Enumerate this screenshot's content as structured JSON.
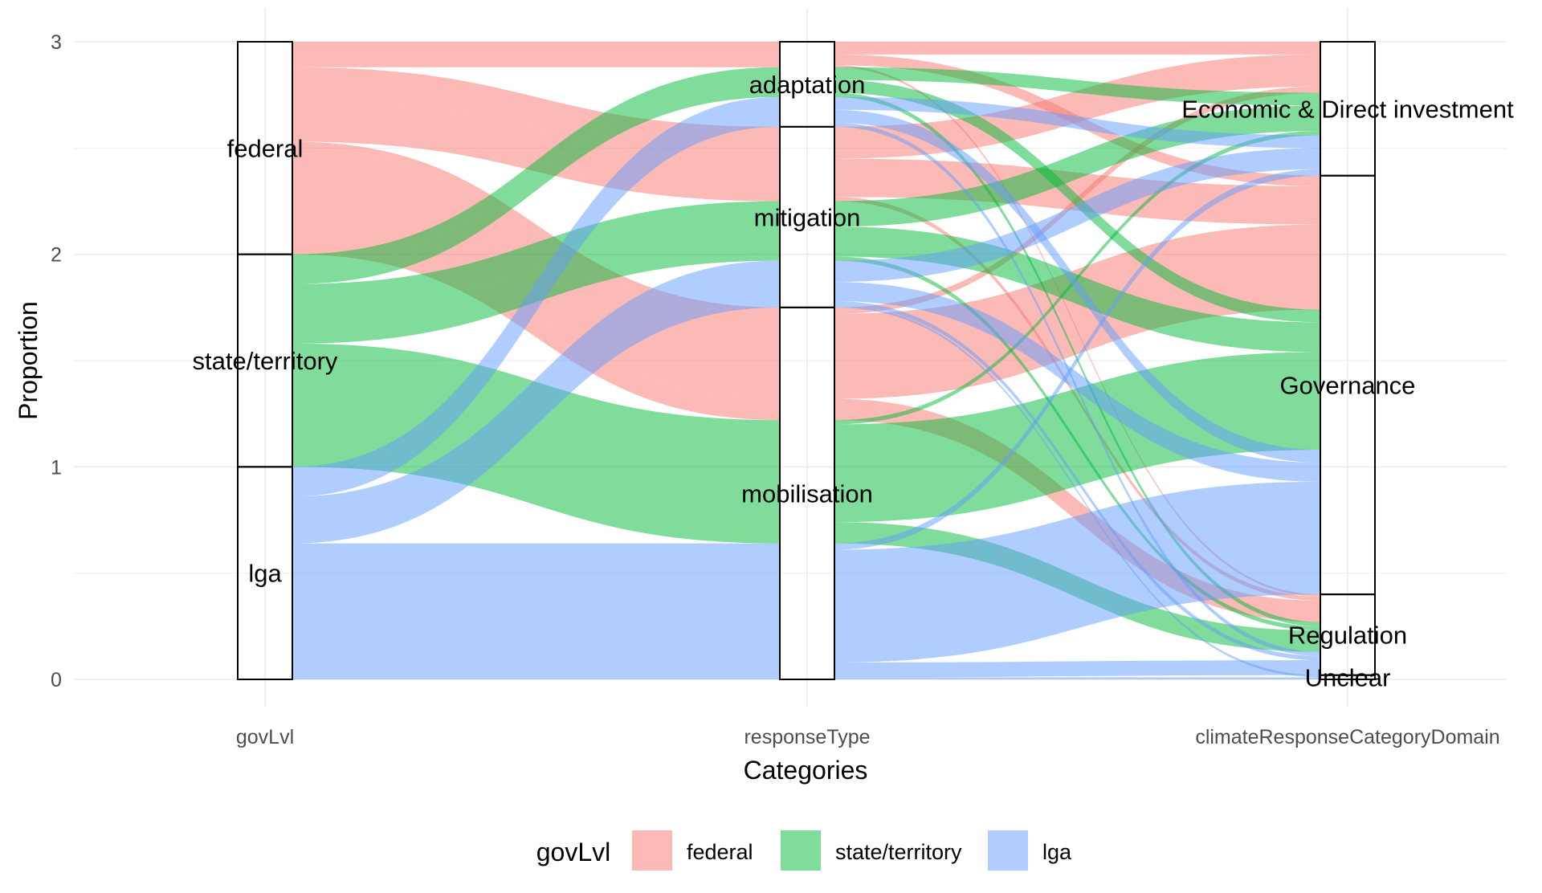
{
  "chart_data": {
    "type": "alluvial",
    "xlabel": "Categories",
    "ylabel": "Proportion",
    "ylim": [
      0,
      3
    ],
    "yticks": [
      "0",
      "1",
      "2",
      "3"
    ],
    "grid": true,
    "legend_position": "bottom",
    "legend_title": "govLvl",
    "axes": [
      {
        "name": "govLvl",
        "strata": [
          "federal",
          "state/territory",
          "lga"
        ]
      },
      {
        "name": "responseType",
        "strata": [
          "adaptation",
          "mitigation",
          "mobilisation"
        ]
      },
      {
        "name": "climateResponseCategoryDomain",
        "strata": [
          "Economic & Direct investment",
          "Governance",
          "Regulation",
          "Unclear"
        ]
      }
    ],
    "fill_levels": [
      {
        "name": "federal",
        "color": "#F8766D"
      },
      {
        "name": "state/territory",
        "color": "#00BA38"
      },
      {
        "name": "lga",
        "color": "#619CFF"
      }
    ],
    "flows": [
      {
        "govLvl": "federal",
        "responseType": "adaptation",
        "domain": "Economic & Direct investment",
        "value": 0.06
      },
      {
        "govLvl": "federal",
        "responseType": "adaptation",
        "domain": "Governance",
        "value": 0.05
      },
      {
        "govLvl": "federal",
        "responseType": "adaptation",
        "domain": "Regulation",
        "value": 0.01
      },
      {
        "govLvl": "federal",
        "responseType": "mitigation",
        "domain": "Economic & Direct investment",
        "value": 0.15
      },
      {
        "govLvl": "federal",
        "responseType": "mitigation",
        "domain": "Governance",
        "value": 0.18
      },
      {
        "govLvl": "federal",
        "responseType": "mitigation",
        "domain": "Regulation",
        "value": 0.02
      },
      {
        "govLvl": "federal",
        "responseType": "mobilisation",
        "domain": "Economic & Direct investment",
        "value": 0.03
      },
      {
        "govLvl": "federal",
        "responseType": "mobilisation",
        "domain": "Governance",
        "value": 0.4
      },
      {
        "govLvl": "federal",
        "responseType": "mobilisation",
        "domain": "Regulation",
        "value": 0.1
      },
      {
        "govLvl": "state/territory",
        "responseType": "adaptation",
        "domain": "Economic & Direct investment",
        "value": 0.06
      },
      {
        "govLvl": "state/territory",
        "responseType": "adaptation",
        "domain": "Governance",
        "value": 0.06
      },
      {
        "govLvl": "state/territory",
        "responseType": "adaptation",
        "domain": "Regulation",
        "value": 0.02
      },
      {
        "govLvl": "state/territory",
        "responseType": "mitigation",
        "domain": "Economic & Direct investment",
        "value": 0.12
      },
      {
        "govLvl": "state/territory",
        "responseType": "mitigation",
        "domain": "Governance",
        "value": 0.14
      },
      {
        "govLvl": "state/territory",
        "responseType": "mitigation",
        "domain": "Regulation",
        "value": 0.02
      },
      {
        "govLvl": "state/territory",
        "responseType": "mobilisation",
        "domain": "Economic & Direct investment",
        "value": 0.02
      },
      {
        "govLvl": "state/territory",
        "responseType": "mobilisation",
        "domain": "Governance",
        "value": 0.46
      },
      {
        "govLvl": "state/territory",
        "responseType": "mobilisation",
        "domain": "Regulation",
        "value": 0.1
      },
      {
        "govLvl": "lga",
        "responseType": "adaptation",
        "domain": "Economic & Direct investment",
        "value": 0.06
      },
      {
        "govLvl": "lga",
        "responseType": "adaptation",
        "domain": "Governance",
        "value": 0.06
      },
      {
        "govLvl": "lga",
        "responseType": "adaptation",
        "domain": "Regulation",
        "value": 0.02
      },
      {
        "govLvl": "lga",
        "responseType": "mitigation",
        "domain": "Economic & Direct investment",
        "value": 0.1
      },
      {
        "govLvl": "lga",
        "responseType": "mitigation",
        "domain": "Governance",
        "value": 0.09
      },
      {
        "govLvl": "lga",
        "responseType": "mitigation",
        "domain": "Regulation",
        "value": 0.02
      },
      {
        "govLvl": "lga",
        "responseType": "mitigation",
        "domain": "Unclear",
        "value": 0.01
      },
      {
        "govLvl": "lga",
        "responseType": "mobilisation",
        "domain": "Economic & Direct investment",
        "value": 0.03
      },
      {
        "govLvl": "lga",
        "responseType": "mobilisation",
        "domain": "Governance",
        "value": 0.53
      },
      {
        "govLvl": "lga",
        "responseType": "mobilisation",
        "domain": "Regulation",
        "value": 0.07
      },
      {
        "govLvl": "lga",
        "responseType": "mobilisation",
        "domain": "Unclear",
        "value": 0.01
      }
    ]
  }
}
